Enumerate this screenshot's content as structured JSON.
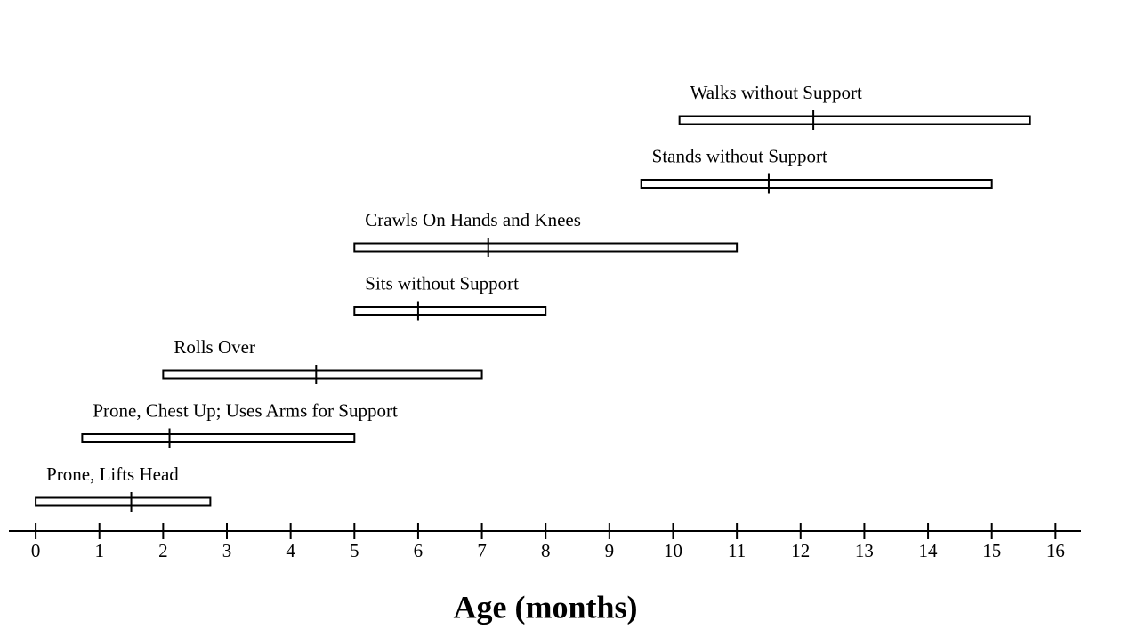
{
  "chart_data": {
    "type": "range_bar",
    "categories": [
      "Prone, Lifts Head",
      "Prone, Chest Up; Uses Arms for Support",
      "Rolls Over",
      "Sits without Support",
      "Crawls On Hands and Knees",
      "Stands without Support",
      "Walks without Support"
    ],
    "start": [
      0,
      0.73,
      2,
      5,
      5,
      9.5,
      10.1
    ],
    "end": [
      2.74,
      5,
      7,
      8,
      11,
      15,
      15.6
    ],
    "median": [
      1.5,
      2.1,
      4.4,
      6,
      7.1,
      11.5,
      12.2
    ],
    "color": "#ffffff",
    "xlabel": "Age (months)",
    "xlim": [
      -0.42,
      16.4
    ],
    "xticks": [
      0,
      1,
      2,
      3,
      4,
      5,
      6,
      7,
      8,
      9,
      10,
      11,
      12,
      13,
      14,
      15,
      16
    ]
  }
}
